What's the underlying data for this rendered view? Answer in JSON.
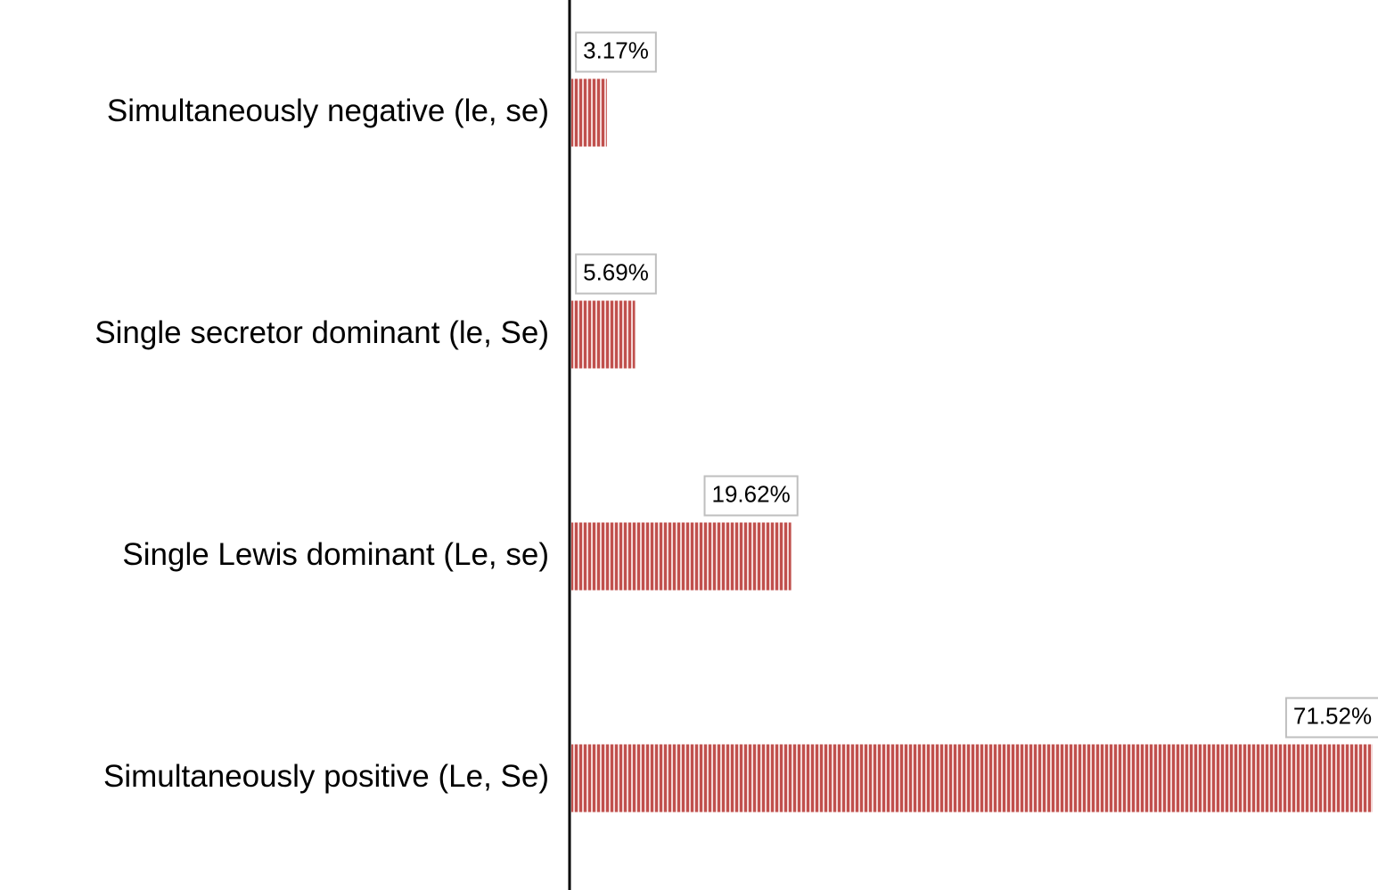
{
  "chart_data": {
    "type": "bar",
    "orientation": "horizontal",
    "categories": [
      "Simultaneously negative (le, se)",
      "Single secretor dominant (le, Se)",
      "Single Lewis dominant (Le, se)",
      "Simultaneously positive (Le, Se)"
    ],
    "values": [
      3.17,
      5.69,
      19.62,
      71.52
    ],
    "value_labels": [
      "3.17%",
      "5.69%",
      "19.62%",
      "71.52%"
    ],
    "color": "#c0504d"
  }
}
